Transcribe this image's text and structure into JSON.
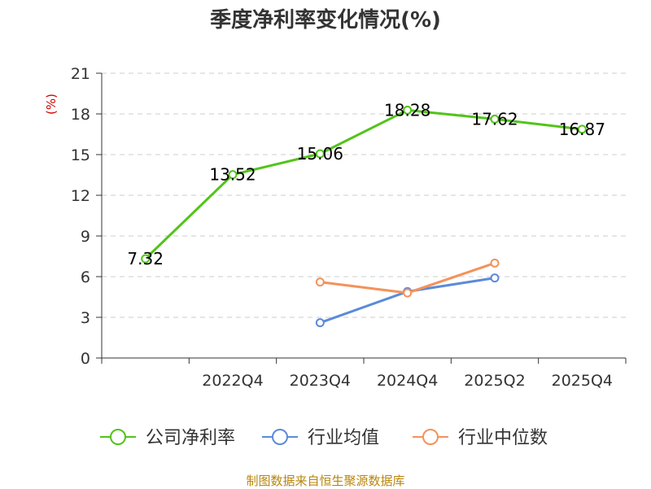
{
  "chart_data": {
    "type": "line",
    "title": "季度净利率变化情况(%)",
    "ylabel": "(%)",
    "ylim": [
      0,
      21
    ],
    "yticks": [
      0,
      3,
      6,
      9,
      12,
      15,
      18,
      21
    ],
    "x_tick_labels": [
      "2022Q4",
      "2023Q4",
      "2024Q4",
      "2025Q2",
      "2025Q4"
    ],
    "grid": true,
    "legend_position": "bottom",
    "series": [
      {
        "name": "公司净利率",
        "color": "#52c41a",
        "points": [
          [
            0.5,
            7.32
          ],
          [
            1.5,
            13.52
          ],
          [
            2.5,
            15.06
          ],
          [
            3.5,
            18.28
          ],
          [
            4.5,
            17.62
          ],
          [
            5.5,
            16.87
          ]
        ],
        "labels": [
          "7.32",
          "13.52",
          "15.06",
          "18.28",
          "17.62",
          "16.87"
        ]
      },
      {
        "name": "行业均值",
        "color": "#5b8bd9",
        "points": [
          [
            2.5,
            2.6
          ],
          [
            3.5,
            4.9
          ],
          [
            4.5,
            5.9
          ]
        ]
      },
      {
        "name": "行业中位数",
        "color": "#f4925a",
        "points": [
          [
            2.5,
            5.6
          ],
          [
            3.5,
            4.8
          ],
          [
            4.5,
            7.0
          ]
        ]
      }
    ]
  },
  "source_note": "制图数据来自恒生聚源数据库"
}
